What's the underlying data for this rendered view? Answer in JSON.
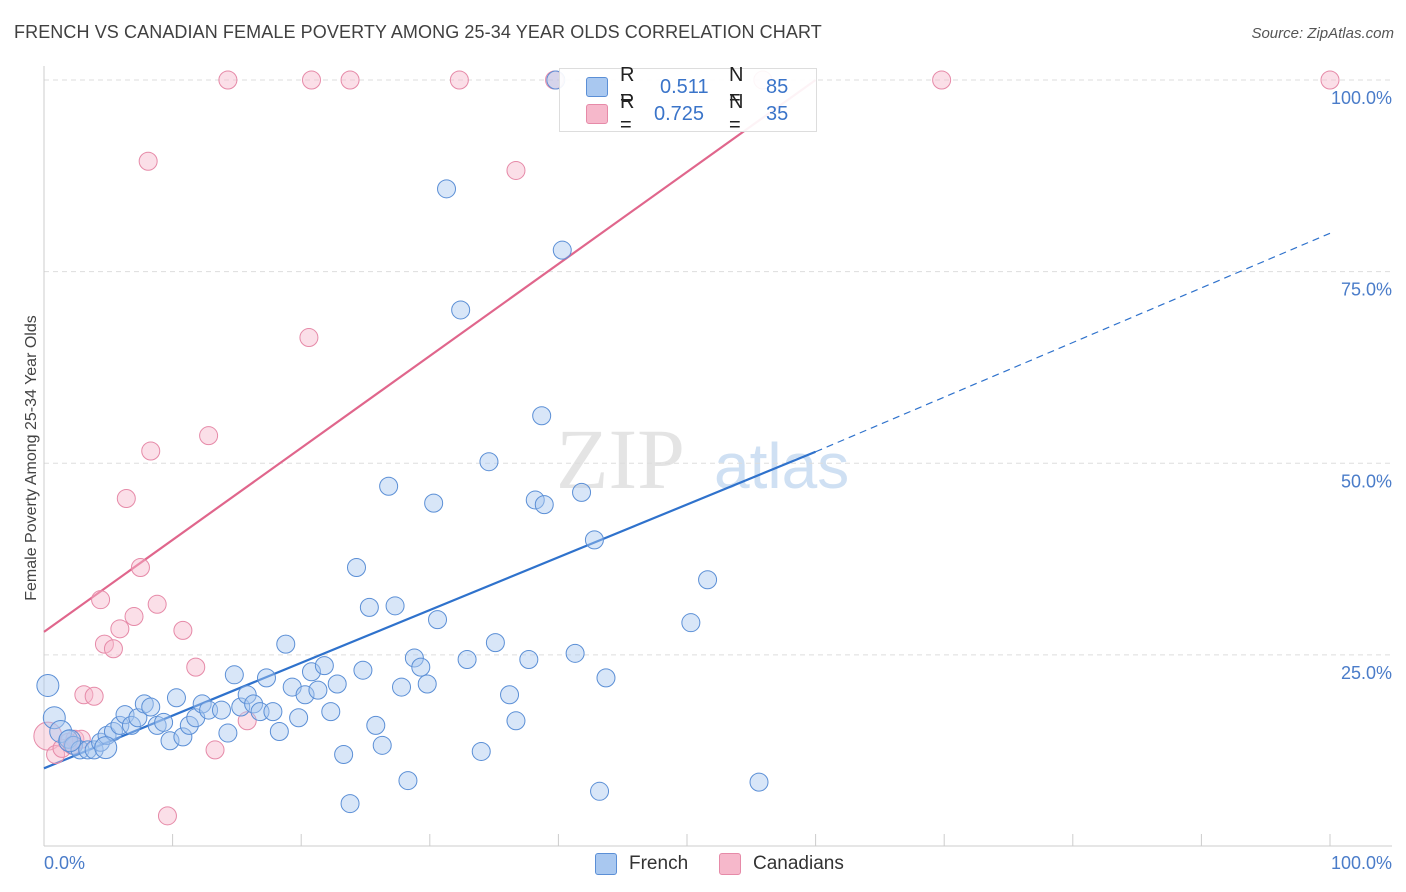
{
  "title": "FRENCH VS CANADIAN FEMALE POVERTY AMONG 25-34 YEAR OLDS CORRELATION CHART",
  "source": "Source: ZipAtlas.com",
  "watermark": {
    "zip": "ZIP",
    "atlas": "atlas"
  },
  "legend": {
    "french": {
      "r_label": "R =",
      "r_value": "0.511",
      "n_label": "N =",
      "n_value": "85"
    },
    "canadians": {
      "r_label": "R =",
      "r_value": "0.725",
      "n_label": "N =",
      "n_value": "35"
    }
  },
  "bottom_legend": {
    "french": "French",
    "canadians": "Canadians"
  },
  "colors": {
    "french_fill": "#a9c8f0",
    "french_stroke": "#5b8fd6",
    "french_line": "#2f72cc",
    "canadians_fill": "#f6b8cb",
    "canadians_stroke": "#e68aa8",
    "canadians_line": "#e0668c",
    "tick_text": "#4a7cc9",
    "grid": "#dddddd"
  },
  "chart_data": {
    "type": "scatter",
    "title": "FRENCH VS CANADIAN FEMALE POVERTY AMONG 25-34 YEAR OLDS CORRELATION CHART",
    "xlabel": "",
    "ylabel": "Female Poverty Among 25-34 Year Olds",
    "xlim": [
      0,
      100
    ],
    "ylim": [
      0,
      102
    ],
    "x_tick_labels": [
      "0.0%",
      "100.0%"
    ],
    "y_ticks": [
      25,
      50,
      75,
      100
    ],
    "y_tick_labels": [
      "25.0%",
      "50.0%",
      "75.0%",
      "100.0%"
    ],
    "grid": "horizontal dashed",
    "legend_position": "top-center",
    "series": [
      {
        "name": "French",
        "r": 0.511,
        "n": 85,
        "trend": {
          "x0": 0,
          "y0": 10.2,
          "x1": 60,
          "y1": 51.5,
          "dashed_to_x": 100,
          "dashed_to_y": 80.0
        },
        "points": [
          [
            0.3,
            21.0,
            12
          ],
          [
            0.8,
            16.8,
            12
          ],
          [
            1.3,
            15.0,
            12
          ],
          [
            1.9,
            14.0,
            10
          ],
          [
            2.3,
            13.2,
            10
          ],
          [
            2.8,
            12.6,
            10
          ],
          [
            3.4,
            12.6,
            10
          ],
          [
            3.9,
            12.6,
            10
          ],
          [
            4.4,
            13.6,
            10
          ],
          [
            4.9,
            14.5,
            10
          ],
          [
            5.4,
            15.0,
            10
          ],
          [
            5.9,
            15.8,
            10
          ],
          [
            6.3,
            17.2,
            10
          ],
          [
            6.8,
            15.8,
            10
          ],
          [
            7.3,
            16.8,
            10
          ],
          [
            7.8,
            18.6,
            10
          ],
          [
            8.3,
            18.2,
            10
          ],
          [
            8.8,
            15.8,
            10
          ],
          [
            9.3,
            16.2,
            10
          ],
          [
            9.8,
            13.8,
            10
          ],
          [
            10.3,
            19.4,
            10
          ],
          [
            10.8,
            14.3,
            10
          ],
          [
            11.3,
            15.8,
            10
          ],
          [
            11.8,
            16.8,
            10
          ],
          [
            12.3,
            18.6,
            10
          ],
          [
            12.8,
            17.8,
            10
          ],
          [
            13.8,
            17.8,
            10
          ],
          [
            14.3,
            14.8,
            10
          ],
          [
            14.8,
            22.4,
            10
          ],
          [
            15.3,
            18.2,
            10
          ],
          [
            15.8,
            19.8,
            10
          ],
          [
            16.3,
            18.6,
            10
          ],
          [
            16.8,
            17.6,
            10
          ],
          [
            17.3,
            22.0,
            10
          ],
          [
            17.8,
            17.6,
            10
          ],
          [
            18.3,
            15.0,
            10
          ],
          [
            18.8,
            26.4,
            10
          ],
          [
            19.3,
            20.8,
            10
          ],
          [
            19.8,
            16.8,
            10
          ],
          [
            20.3,
            19.8,
            10
          ],
          [
            20.8,
            22.8,
            10
          ],
          [
            21.3,
            20.4,
            10
          ],
          [
            21.8,
            23.6,
            10
          ],
          [
            22.3,
            17.6,
            10
          ],
          [
            22.8,
            21.2,
            10
          ],
          [
            23.3,
            12.0,
            10
          ],
          [
            23.8,
            5.6,
            10
          ],
          [
            24.3,
            36.4,
            10
          ],
          [
            24.8,
            23.0,
            10
          ],
          [
            25.3,
            31.2,
            10
          ],
          [
            25.8,
            15.8,
            10
          ],
          [
            26.3,
            13.2,
            10
          ],
          [
            26.8,
            47.0,
            10
          ],
          [
            27.3,
            31.4,
            10
          ],
          [
            27.8,
            20.8,
            10
          ],
          [
            28.3,
            8.6,
            10
          ],
          [
            28.8,
            24.6,
            10
          ],
          [
            29.3,
            23.4,
            10
          ],
          [
            29.8,
            21.2,
            10
          ],
          [
            30.3,
            44.8,
            10
          ],
          [
            30.6,
            29.6,
            10
          ],
          [
            31.3,
            85.8,
            10
          ],
          [
            32.4,
            70.0,
            10
          ],
          [
            32.9,
            24.4,
            10
          ],
          [
            34.0,
            12.4,
            10
          ],
          [
            34.6,
            50.2,
            10
          ],
          [
            35.1,
            26.6,
            10
          ],
          [
            36.2,
            19.8,
            10
          ],
          [
            36.7,
            16.4,
            10
          ],
          [
            37.7,
            24.4,
            10
          ],
          [
            38.2,
            45.2,
            10
          ],
          [
            38.7,
            56.2,
            10
          ],
          [
            38.9,
            44.6,
            10
          ],
          [
            39.8,
            100.0,
            10
          ],
          [
            40.3,
            77.8,
            10
          ],
          [
            41.3,
            25.2,
            10
          ],
          [
            41.8,
            46.2,
            10
          ],
          [
            42.8,
            40.0,
            10
          ],
          [
            43.2,
            7.2,
            10
          ],
          [
            43.7,
            22.0,
            10
          ],
          [
            50.3,
            29.2,
            10
          ],
          [
            51.6,
            34.8,
            10
          ],
          [
            55.6,
            8.4,
            10
          ],
          [
            4.8,
            12.9,
            12
          ],
          [
            2.0,
            13.8,
            12
          ]
        ]
      },
      {
        "name": "Canadians",
        "r": 0.725,
        "n": 35,
        "trend": {
          "x0": 0,
          "y0": 28.0,
          "x1": 60,
          "y1": 100.0
        },
        "points": [
          [
            0.3,
            14.4,
            16
          ],
          [
            0.9,
            12.0,
            10
          ],
          [
            1.4,
            12.8,
            10
          ],
          [
            1.9,
            13.6,
            10
          ],
          [
            2.4,
            14.0,
            10
          ],
          [
            2.9,
            14.0,
            10
          ],
          [
            3.1,
            19.8,
            10
          ],
          [
            3.9,
            19.6,
            10
          ],
          [
            4.4,
            32.2,
            10
          ],
          [
            4.7,
            26.4,
            10
          ],
          [
            5.4,
            25.8,
            10
          ],
          [
            5.9,
            28.4,
            10
          ],
          [
            6.4,
            45.4,
            10
          ],
          [
            7.0,
            30.0,
            10
          ],
          [
            7.5,
            36.4,
            10
          ],
          [
            8.1,
            89.4,
            10
          ],
          [
            8.3,
            51.6,
            10
          ],
          [
            8.8,
            31.6,
            10
          ],
          [
            9.6,
            4.0,
            10
          ],
          [
            10.8,
            28.2,
            10
          ],
          [
            11.8,
            23.4,
            10
          ],
          [
            12.8,
            53.6,
            10
          ],
          [
            13.3,
            12.6,
            10
          ],
          [
            14.3,
            100.0,
            10
          ],
          [
            15.8,
            16.4,
            10
          ],
          [
            20.8,
            100.0,
            10
          ],
          [
            20.6,
            66.4,
            10
          ],
          [
            23.8,
            100.0,
            10
          ],
          [
            32.3,
            100.0,
            10
          ],
          [
            36.7,
            88.2,
            10
          ],
          [
            39.7,
            100.0,
            10
          ],
          [
            55.9,
            100.0,
            10
          ],
          [
            69.8,
            100.0,
            10
          ],
          [
            100.0,
            100.0,
            10
          ],
          [
            2.2,
            13.2,
            10
          ]
        ]
      }
    ]
  }
}
